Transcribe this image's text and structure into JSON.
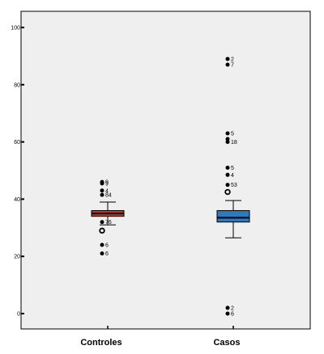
{
  "chart_data": {
    "type": "box",
    "title": "",
    "xlabel": "",
    "ylabel": "",
    "ylim": [
      -5,
      105
    ],
    "yticks": [
      "0",
      "20",
      "40",
      "60",
      "80",
      "100"
    ],
    "grid": false,
    "plot_background": "#efefef",
    "categories": [
      "Controles",
      "Casos"
    ],
    "boxes": [
      {
        "category": "Controles",
        "color": "#c0392b",
        "whisker_low": 31,
        "q1": 34,
        "median": 35,
        "q3": 36,
        "whisker_high": 39,
        "outliers": [
          {
            "value": 46,
            "label": "9",
            "marker": "dot"
          },
          {
            "value": 45.5,
            "label": "9",
            "marker": "dot"
          },
          {
            "value": 43,
            "label": "4",
            "marker": "dot"
          },
          {
            "value": 41.5,
            "label": "84",
            "marker": "dot"
          },
          {
            "value": 32,
            "label": "76",
            "marker": "dot"
          },
          {
            "value": 29,
            "label": "",
            "marker": "ring"
          },
          {
            "value": 24,
            "label": "6",
            "marker": "dot"
          },
          {
            "value": 21,
            "label": "6",
            "marker": "dot"
          }
        ]
      },
      {
        "category": "Casos",
        "color": "#2e78bf",
        "whisker_low": 26.5,
        "q1": 32,
        "median": 33.5,
        "q3": 36,
        "whisker_high": 39.5,
        "outliers": [
          {
            "value": 89,
            "label": "2",
            "marker": "dot"
          },
          {
            "value": 87,
            "label": "7",
            "marker": "dot"
          },
          {
            "value": 63,
            "label": "5",
            "marker": "dot"
          },
          {
            "value": 61,
            "label": "",
            "marker": "dot"
          },
          {
            "value": 60,
            "label": "18",
            "marker": "dot"
          },
          {
            "value": 51,
            "label": "5",
            "marker": "dot"
          },
          {
            "value": 48.5,
            "label": "4",
            "marker": "dot"
          },
          {
            "value": 45,
            "label": "53",
            "marker": "dot"
          },
          {
            "value": 42.5,
            "label": "",
            "marker": "ring"
          },
          {
            "value": 2,
            "label": "2",
            "marker": "dot"
          },
          {
            "value": 0,
            "label": "6",
            "marker": "dot"
          }
        ]
      }
    ]
  }
}
